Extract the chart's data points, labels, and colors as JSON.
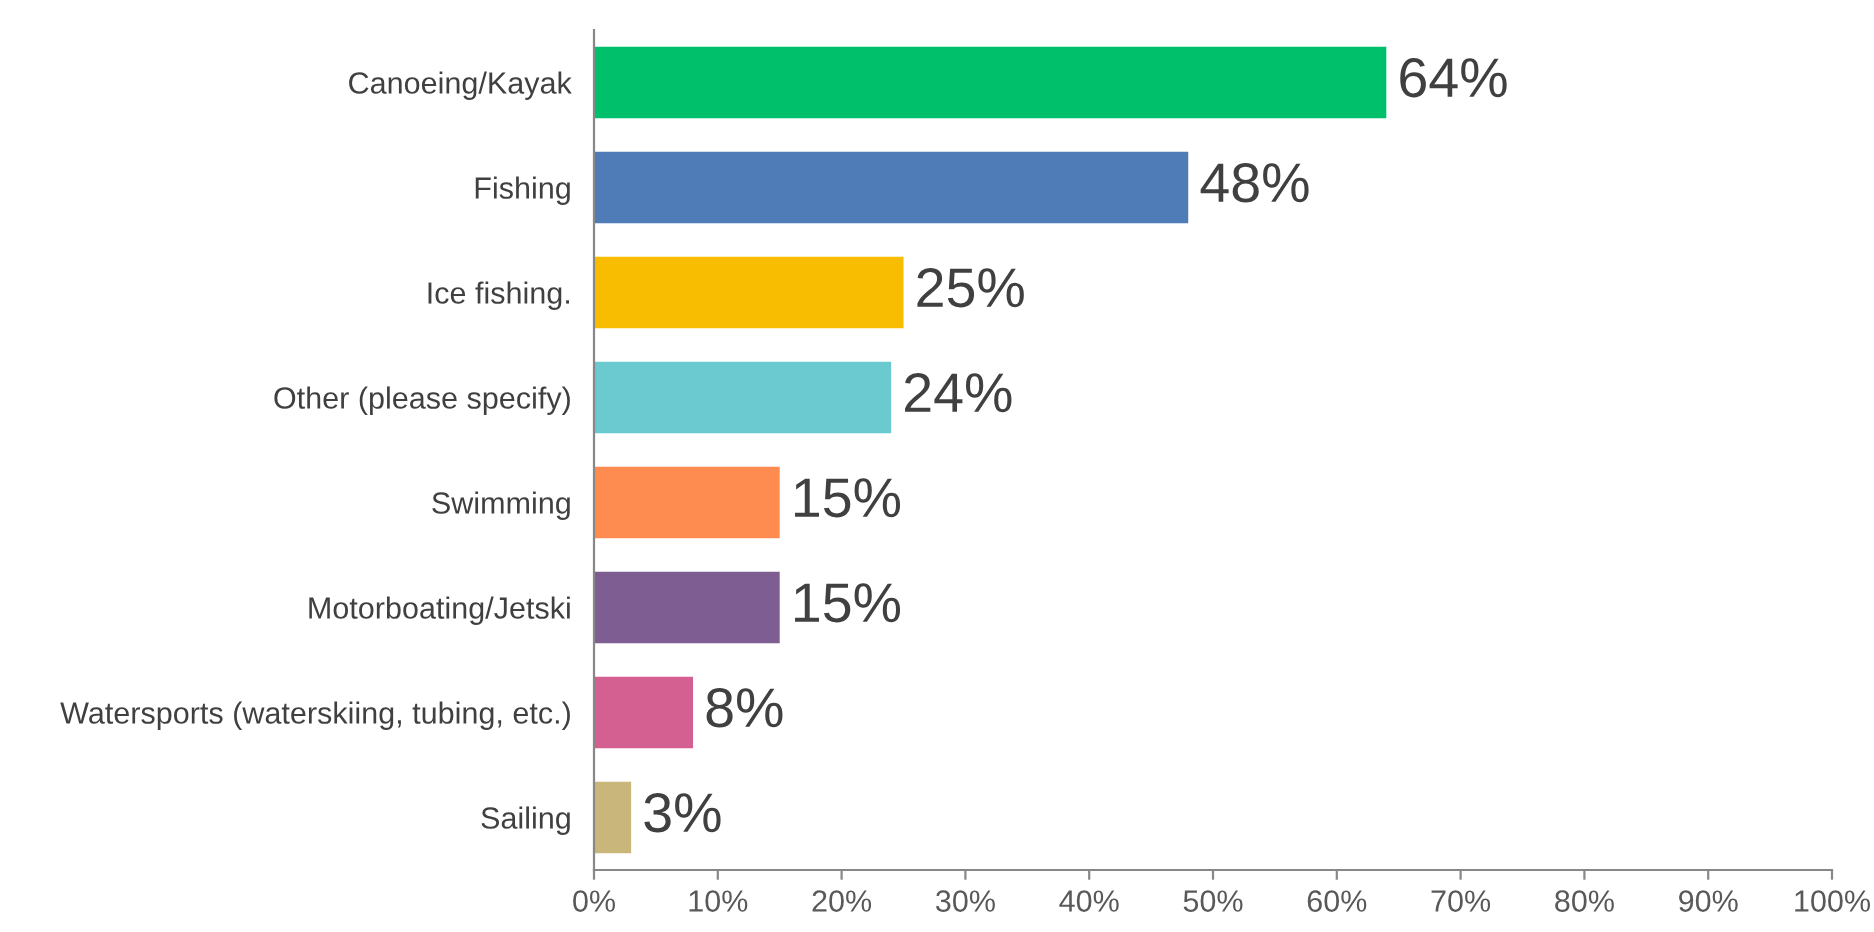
{
  "chart_data": {
    "type": "bar",
    "orientation": "horizontal",
    "categories": [
      "Canoeing/Kayak",
      "Fishing",
      "Ice fishing.",
      "Other (please specify)",
      "Swimming",
      "Motorboating/Jetski",
      "Watersports (waterskiing, tubing, etc.)",
      "Sailing"
    ],
    "values": [
      64,
      48,
      25,
      24,
      15,
      15,
      8,
      3
    ],
    "value_labels": [
      "64%",
      "48%",
      "25%",
      "24%",
      "15%",
      "15%",
      "8%",
      "3%"
    ],
    "colors": [
      "#00c06b",
      "#4f7bb6",
      "#f8bd00",
      "#6bcacf",
      "#fe8b50",
      "#7e5e92",
      "#d45f91",
      "#c9b67b"
    ],
    "xlim": [
      0,
      100
    ],
    "xticks": [
      {
        "value": 0,
        "label": "0%"
      },
      {
        "value": 10,
        "label": "10%"
      },
      {
        "value": 20,
        "label": "20%"
      },
      {
        "value": 30,
        "label": "30%"
      },
      {
        "value": 40,
        "label": "40%"
      },
      {
        "value": 50,
        "label": "50%"
      },
      {
        "value": 60,
        "label": "60%"
      },
      {
        "value": 70,
        "label": "70%"
      },
      {
        "value": 80,
        "label": "80%"
      },
      {
        "value": 90,
        "label": "90%"
      },
      {
        "value": 100,
        "label": "100%"
      }
    ],
    "grid": false,
    "legend": false
  }
}
